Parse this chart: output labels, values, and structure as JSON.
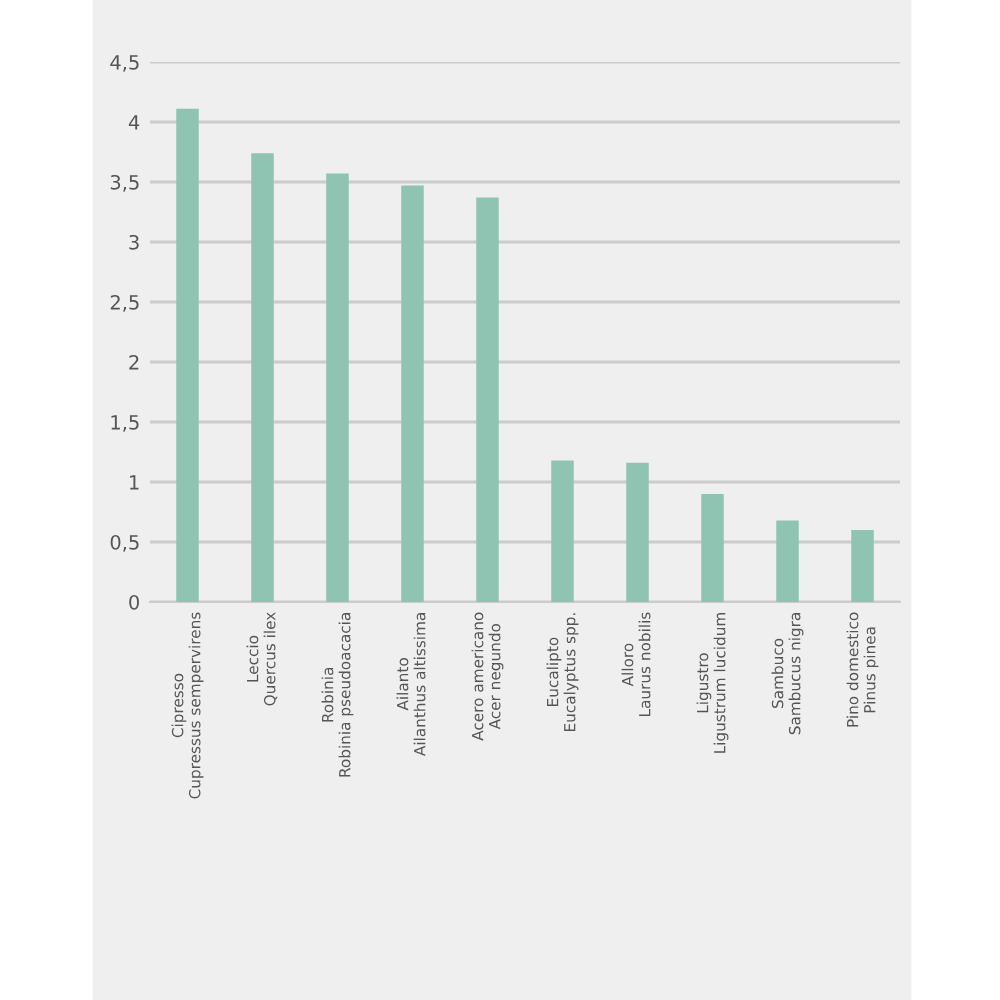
{
  "chart_data": {
    "type": "bar",
    "categories": [
      "Cipresso\nCupressus sempervirens",
      "Leccio\nQuercus ilex",
      "Robinia\nRobinia pseudoacacia",
      "Ailanto\nAilanthus altissima",
      "Acero americano\nAcer negundo",
      "Eucalipto\nEucalyptus spp.",
      "Alloro\nLaurus nobilis",
      "Ligustro\nLigustrum lucidum",
      "Sambuco\nSambucus nigra",
      "Pino domestico\nPinus pinea"
    ],
    "values": [
      4.11,
      3.74,
      3.57,
      3.47,
      3.37,
      1.18,
      1.16,
      0.9,
      0.68,
      0.6
    ],
    "color": "#8fc4b3",
    "ylim": [
      0,
      4.5
    ],
    "yticks": [
      0,
      {
        "value": 0.5,
        "label": "0,5"
      },
      1,
      {
        "value": 1.5,
        "label": "1,5"
      },
      2,
      {
        "value": 2.5,
        "label": "2,5"
      },
      3,
      {
        "value": 3.5,
        "label": "3,5"
      },
      4,
      {
        "value": 4.5,
        "label": "4,5"
      }
    ],
    "grid": "y"
  }
}
